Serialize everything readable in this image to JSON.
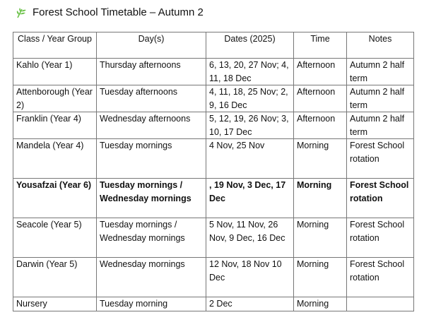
{
  "title": {
    "icon": "leaf-icon",
    "text": "Forest School Timetable – Autumn 2",
    "icon_color": "#6cc24a"
  },
  "table": {
    "headers": [
      "Class / Year Group",
      "Day(s)",
      "Dates (2025)",
      "Time",
      "Notes"
    ],
    "rows": [
      {
        "cells": [
          "Kahlo (Year 1)",
          "Thursday afternoons",
          "6, 13, 20, 27 Nov; 4, 11, 18 Dec",
          "Afternoon",
          "Autumn 2 half term"
        ]
      },
      {
        "cells": [
          "Attenborough (Year 2)",
          "Tuesday afternoons",
          "4, 11, 18, 25 Nov; 2, 9, 16 Dec",
          "Afternoon",
          "Autumn 2 half term"
        ]
      },
      {
        "cells": [
          "Franklin (Year 4)",
          "Wednesday afternoons",
          "5, 12, 19, 26 Nov; 3, 10, 17 Dec",
          "Afternoon",
          "Autumn 2 half term"
        ]
      },
      {
        "cells": [
          "Mandela (Year 4)",
          "Tuesday mornings",
          "4 Nov, 25 Nov",
          "Morning",
          "Forest School rotation"
        ]
      },
      {
        "cells": [
          "Yousafzai (Year 6)",
          "Tuesday mornings / Wednesday mornings",
          ", 19 Nov, 3 Dec, 17 Dec",
          "Morning",
          "Forest School rotation"
        ],
        "bold": true
      },
      {
        "cells": [
          "Seacole (Year 5)",
          "Tuesday mornings / Wednesday mornings",
          "5 Nov, 11 Nov, 26 Nov, 9 Dec, 16 Dec",
          "Morning",
          "Forest School rotation"
        ]
      },
      {
        "cells": [
          "Darwin (Year 5)",
          "Wednesday mornings",
          "12 Nov, 18 Nov 10 Dec",
          "Morning",
          "Forest School rotation"
        ]
      },
      {
        "cells": [
          "Nursery",
          "Tuesday morning",
          "2 Dec",
          "Morning",
          ""
        ]
      }
    ]
  }
}
